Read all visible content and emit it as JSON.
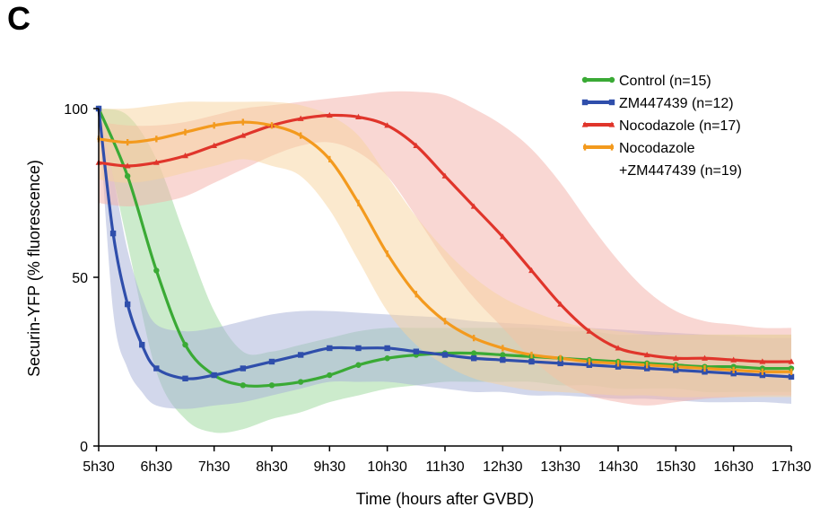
{
  "panel_label": "C",
  "chart_data": {
    "type": "line",
    "xlabel": "Time (hours after GVBD)",
    "ylabel": "Securin-YFP (% fluorescence)",
    "x_unit": "hours after GVBD",
    "x_tick_labels": [
      "5h30",
      "6h30",
      "7h30",
      "8h30",
      "9h30",
      "10h30",
      "11h30",
      "12h30",
      "13h30",
      "14h30",
      "15h30",
      "16h30",
      "17h30"
    ],
    "x_tick_values": [
      5.5,
      6.5,
      7.5,
      8.5,
      9.5,
      10.5,
      11.5,
      12.5,
      13.5,
      14.5,
      15.5,
      16.5,
      17.5
    ],
    "xlim": [
      5.5,
      17.5
    ],
    "ylim": [
      0,
      100
    ],
    "y_ticks": [
      0,
      50,
      100
    ],
    "grid": false,
    "legend_position": "top-right",
    "shaded_band": "variability band around each series",
    "legend_lines": [
      [
        "Control (n=15)"
      ],
      [
        "ZM447439 (n=12)"
      ],
      [
        "Nocodazole (n=17)"
      ],
      [
        "Nocodazole",
        "+ZM447439 (n=19)"
      ]
    ],
    "series": [
      {
        "name": "Control (n=15)",
        "color": "#3aaa35",
        "band_color": "#9ad89a",
        "marker": "circle",
        "x": [
          5.5,
          6.0,
          6.5,
          7.0,
          7.5,
          8.0,
          8.5,
          9.0,
          9.5,
          10.0,
          10.5,
          11.0,
          11.5,
          12.0,
          12.5,
          13.0,
          13.5,
          14.0,
          14.5,
          15.0,
          15.5,
          16.0,
          16.5,
          17.0,
          17.5
        ],
        "y": [
          100,
          80,
          52,
          30,
          21,
          18,
          18,
          19,
          21,
          24,
          26,
          27,
          27.5,
          27.5,
          27,
          26.5,
          26,
          25.5,
          25,
          24.5,
          24,
          23.5,
          23.5,
          23,
          23
        ],
        "upper": [
          100,
          98,
          85,
          62,
          40,
          28,
          28,
          30,
          32,
          34,
          35,
          35,
          35,
          35,
          35,
          35,
          34,
          34,
          33,
          33,
          33,
          33,
          33,
          33,
          33
        ],
        "lower": [
          100,
          60,
          22,
          8,
          4,
          5,
          8,
          10,
          13,
          15,
          17,
          18,
          19,
          19,
          19,
          19,
          18,
          18,
          17,
          17,
          17,
          16,
          16,
          16,
          16
        ]
      },
      {
        "name": "ZM447439 (n=12)",
        "color": "#2f4eab",
        "band_color": "#a5b0d8",
        "marker": "square",
        "x": [
          5.5,
          5.75,
          6.0,
          6.25,
          6.5,
          7.0,
          7.5,
          8.0,
          8.5,
          9.0,
          9.5,
          10.0,
          10.5,
          11.0,
          11.5,
          12.0,
          12.5,
          13.0,
          13.5,
          14.0,
          14.5,
          15.0,
          15.5,
          16.0,
          16.5,
          17.0,
          17.5
        ],
        "y": [
          100,
          63,
          42,
          30,
          23,
          20,
          21,
          23,
          25,
          27,
          29,
          29,
          29,
          28,
          27,
          26,
          25.5,
          25,
          24.5,
          24,
          23.5,
          23,
          22.5,
          22,
          21.5,
          21,
          20.5
        ],
        "upper": [
          100,
          80,
          58,
          44,
          36,
          34,
          35,
          37,
          39,
          40,
          40,
          39.5,
          39,
          38.5,
          38,
          37,
          36.5,
          36,
          35.5,
          35,
          34.5,
          34,
          33.5,
          33,
          32.5,
          32,
          32
        ],
        "lower": [
          100,
          40,
          23,
          16,
          12,
          11,
          12,
          13,
          15,
          17,
          19,
          19,
          19,
          18,
          17,
          16,
          16,
          15,
          15,
          14.5,
          14,
          14,
          13.5,
          13,
          13,
          13,
          12.5
        ]
      },
      {
        "name": "Nocodazole (n=17)",
        "color": "#e0352b",
        "band_color": "#f3b0a8",
        "marker": "triangle",
        "x": [
          5.5,
          6.0,
          6.5,
          7.0,
          7.5,
          8.0,
          8.5,
          9.0,
          9.5,
          10.0,
          10.5,
          11.0,
          11.5,
          12.0,
          12.5,
          13.0,
          13.5,
          14.0,
          14.5,
          15.0,
          15.5,
          16.0,
          16.5,
          17.0,
          17.5
        ],
        "y": [
          84,
          83,
          84,
          86,
          89,
          92,
          95,
          97,
          98,
          97.5,
          95,
          89,
          80,
          71,
          62,
          52,
          42,
          34,
          29,
          27,
          26,
          26,
          25.5,
          25,
          25
        ],
        "upper": [
          96,
          95,
          95,
          96,
          98,
          100,
          101,
          102,
          103,
          104,
          105,
          105,
          104,
          100,
          95,
          88,
          78,
          66,
          55,
          46,
          40,
          37,
          36,
          35,
          35
        ],
        "lower": [
          72,
          71,
          72,
          74,
          78,
          82,
          86,
          89,
          90,
          87,
          80,
          68,
          55,
          44,
          35,
          26,
          19,
          15,
          13,
          12,
          13,
          14,
          14.5,
          15,
          15
        ]
      },
      {
        "name": "Nocodazole +ZM447439 (n=19)",
        "color": "#f39a1e",
        "band_color": "#f8d39e",
        "marker": "bar",
        "x": [
          5.5,
          6.0,
          6.5,
          7.0,
          7.5,
          8.0,
          8.5,
          9.0,
          9.5,
          10.0,
          10.5,
          11.0,
          11.5,
          12.0,
          12.5,
          13.0,
          13.5,
          14.0,
          14.5,
          15.0,
          15.5,
          16.0,
          16.5,
          17.0,
          17.5
        ],
        "y": [
          91,
          90,
          91,
          93,
          95,
          96,
          95,
          92,
          85,
          72,
          57,
          45,
          37,
          32,
          29,
          27,
          26,
          25,
          24.5,
          24,
          23.5,
          23,
          22.5,
          22,
          22
        ],
        "upper": [
          100,
          100,
          101,
          102,
          102,
          102,
          102,
          101,
          98,
          92,
          80,
          68,
          58,
          50,
          44,
          40,
          37,
          35,
          34,
          33,
          33,
          33,
          33,
          33,
          33
        ],
        "lower": [
          79,
          78,
          79,
          81,
          83,
          85,
          83,
          80,
          70,
          55,
          40,
          30,
          24,
          20,
          18,
          16.5,
          16,
          15.5,
          15,
          15,
          14.5,
          14.5,
          14.5,
          14.5,
          14.5
        ]
      }
    ]
  }
}
